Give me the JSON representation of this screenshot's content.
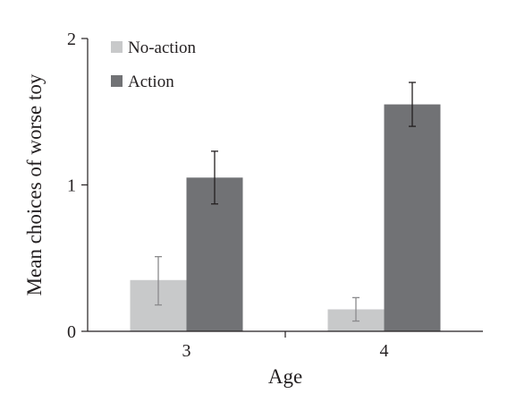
{
  "chart_data": {
    "type": "bar",
    "categories": [
      "3",
      "4"
    ],
    "xlabel": "Age",
    "ylabel": "Mean choices of worse toy",
    "ylim": [
      0,
      2
    ],
    "yticks": [
      "0",
      "1",
      "2"
    ],
    "grid": false,
    "legend_position": "top-left",
    "series": [
      {
        "name": "No-action",
        "color": "#c8c9ca",
        "errcolor": "#8a8a8c",
        "values": [
          0.35,
          0.15
        ],
        "err_low": [
          0.18,
          0.07
        ],
        "err_high": [
          0.51,
          0.23
        ]
      },
      {
        "name": "Action",
        "color": "#717275",
        "errcolor": "#231f20",
        "values": [
          1.05,
          1.55
        ],
        "err_low": [
          0.87,
          1.4
        ],
        "err_high": [
          1.23,
          1.7
        ]
      }
    ]
  }
}
